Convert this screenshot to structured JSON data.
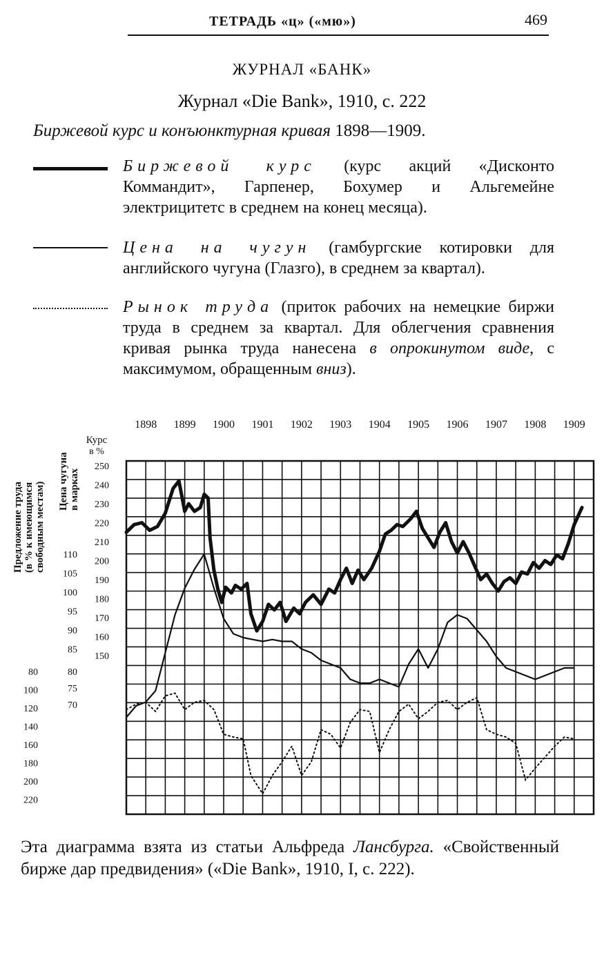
{
  "running_head": {
    "title": "ТЕТРАДЬ «ц» («мю»)",
    "page_number": "469"
  },
  "section_title": "ЖУРНАЛ «БАНК»",
  "source_line": "Журнал «Die Bank», 1910, с. 222",
  "caption": {
    "italic": "Биржевой курс и конъюнктурная кривая",
    "years": "1898—1909."
  },
  "legend": [
    {
      "style": "thick-solid",
      "term": "Биржевой курс",
      "text": "(курс акций «Дисконто Коммандит», Гарпенер, Бохумер и Альгемейне электрицитетс в среднем на конец месяца)."
    },
    {
      "style": "thin-solid",
      "term": "Цена на чугун",
      "text": "(гамбургские котировки для английского чугуна (Глазго), в среднем за квартал)."
    },
    {
      "style": "dotted",
      "term": "Рынок труда",
      "text_before": "(приток рабочих на немецкие биржи труда в среднем за квартал. Для облегчения сравнения кривая рынка труда нанесена",
      "italic_part": "в опрокинутом виде",
      "text_middle": ", с максимумом, обращенным",
      "italic_end": "вниз",
      "text_end": ")."
    }
  ],
  "chart_data": {
    "type": "line",
    "x_tick_labels": [
      "1898",
      "1899",
      "1900",
      "1901",
      "1902",
      "1903",
      "1904",
      "1905",
      "1906",
      "1907",
      "1908",
      "1909"
    ],
    "axis_titles": {
      "labor": "Предложение труда (в % к имеющимся свободным местам)",
      "iron": "Цена чугуна в марках",
      "stock": "Курс в %"
    },
    "stock_ticks": [
      "250",
      "240",
      "230",
      "220",
      "210",
      "200",
      "190",
      "180",
      "170",
      "160",
      "150"
    ],
    "iron_ticks_upper": [
      "110",
      "105",
      "100",
      "95",
      "90",
      "85"
    ],
    "iron_ticks_lower": [
      "80",
      "75",
      "70"
    ],
    "labor_ticks": [
      "80",
      "100",
      "120",
      "140",
      "160",
      "180",
      "200",
      "220"
    ],
    "x_range": [
      1898.0,
      1910.0
    ],
    "stock_range": [
      253,
      130
    ],
    "grid": true,
    "series": [
      {
        "name": "Биржевой курс",
        "unit": "%",
        "points": [
          [
            1898.0,
            215
          ],
          [
            1898.2,
            219
          ],
          [
            1898.4,
            220
          ],
          [
            1898.6,
            216
          ],
          [
            1898.8,
            218
          ],
          [
            1899.0,
            225
          ],
          [
            1899.2,
            238
          ],
          [
            1899.35,
            242
          ],
          [
            1899.5,
            226
          ],
          [
            1899.6,
            230
          ],
          [
            1899.75,
            226
          ],
          [
            1899.9,
            228
          ],
          [
            1900.0,
            235
          ],
          [
            1900.1,
            233
          ],
          [
            1900.15,
            212
          ],
          [
            1900.25,
            195
          ],
          [
            1900.35,
            185
          ],
          [
            1900.45,
            178
          ],
          [
            1900.55,
            186
          ],
          [
            1900.7,
            183
          ],
          [
            1900.8,
            187
          ],
          [
            1900.95,
            185
          ],
          [
            1901.1,
            188
          ],
          [
            1901.2,
            172
          ],
          [
            1901.35,
            163
          ],
          [
            1901.5,
            168
          ],
          [
            1901.65,
            177
          ],
          [
            1901.8,
            174
          ],
          [
            1901.95,
            178
          ],
          [
            1902.1,
            168
          ],
          [
            1902.3,
            175
          ],
          [
            1902.45,
            172
          ],
          [
            1902.6,
            178
          ],
          [
            1902.8,
            182
          ],
          [
            1903.0,
            177
          ],
          [
            1903.2,
            185
          ],
          [
            1903.35,
            183
          ],
          [
            1903.5,
            190
          ],
          [
            1903.65,
            196
          ],
          [
            1903.8,
            188
          ],
          [
            1903.95,
            195
          ],
          [
            1904.1,
            190
          ],
          [
            1904.3,
            196
          ],
          [
            1904.5,
            205
          ],
          [
            1904.65,
            214
          ],
          [
            1904.8,
            216
          ],
          [
            1904.95,
            219
          ],
          [
            1905.1,
            218
          ],
          [
            1905.3,
            222
          ],
          [
            1905.45,
            226
          ],
          [
            1905.6,
            217
          ],
          [
            1905.75,
            212
          ],
          [
            1905.9,
            207
          ],
          [
            1906.05,
            215
          ],
          [
            1906.2,
            220
          ],
          [
            1906.35,
            210
          ],
          [
            1906.5,
            204
          ],
          [
            1906.65,
            210
          ],
          [
            1906.8,
            204
          ],
          [
            1906.95,
            197
          ],
          [
            1907.1,
            190
          ],
          [
            1907.25,
            193
          ],
          [
            1907.4,
            188
          ],
          [
            1907.55,
            184
          ],
          [
            1907.7,
            189
          ],
          [
            1907.85,
            191
          ],
          [
            1908.0,
            188
          ],
          [
            1908.15,
            194
          ],
          [
            1908.3,
            193
          ],
          [
            1908.45,
            199
          ],
          [
            1908.6,
            196
          ],
          [
            1908.75,
            200
          ],
          [
            1908.9,
            198
          ],
          [
            1909.05,
            203
          ],
          [
            1909.2,
            201
          ],
          [
            1909.35,
            209
          ],
          [
            1909.5,
            219
          ],
          [
            1909.7,
            228
          ]
        ]
      },
      {
        "name": "Цена на чугун",
        "unit": "марки",
        "points": [
          [
            1898.0,
            67
          ],
          [
            1898.25,
            70
          ],
          [
            1898.5,
            71
          ],
          [
            1898.75,
            74
          ],
          [
            1899.0,
            84
          ],
          [
            1899.25,
            94
          ],
          [
            1899.5,
            101
          ],
          [
            1899.75,
            106
          ],
          [
            1900.0,
            110
          ],
          [
            1900.25,
            101
          ],
          [
            1900.5,
            93
          ],
          [
            1900.75,
            89
          ],
          [
            1901.0,
            88
          ],
          [
            1901.25,
            87.5
          ],
          [
            1901.5,
            87
          ],
          [
            1901.75,
            87.5
          ],
          [
            1902.0,
            87
          ],
          [
            1902.25,
            87
          ],
          [
            1902.5,
            85
          ],
          [
            1902.75,
            84
          ],
          [
            1903.0,
            82
          ],
          [
            1903.25,
            81
          ],
          [
            1903.5,
            80
          ],
          [
            1903.75,
            77
          ],
          [
            1904.0,
            76
          ],
          [
            1904.25,
            76
          ],
          [
            1904.5,
            77
          ],
          [
            1904.75,
            76
          ],
          [
            1905.0,
            75
          ],
          [
            1905.25,
            81
          ],
          [
            1905.5,
            85
          ],
          [
            1905.75,
            80
          ],
          [
            1906.0,
            85
          ],
          [
            1906.25,
            92
          ],
          [
            1906.5,
            94
          ],
          [
            1906.75,
            93
          ],
          [
            1907.0,
            90
          ],
          [
            1907.25,
            87
          ],
          [
            1907.5,
            83
          ],
          [
            1907.75,
            80
          ],
          [
            1908.0,
            79
          ],
          [
            1908.25,
            78
          ],
          [
            1908.5,
            77
          ],
          [
            1908.75,
            78
          ],
          [
            1909.0,
            79
          ],
          [
            1909.25,
            80
          ],
          [
            1909.5,
            80
          ]
        ]
      },
      {
        "name": "Рынок труда",
        "unit": "%",
        "points": [
          [
            1898.0,
            118
          ],
          [
            1898.25,
            112
          ],
          [
            1898.5,
            110
          ],
          [
            1898.75,
            120
          ],
          [
            1899.0,
            103
          ],
          [
            1899.25,
            100
          ],
          [
            1899.5,
            118
          ],
          [
            1899.75,
            110
          ],
          [
            1900.0,
            108
          ],
          [
            1900.25,
            118
          ],
          [
            1900.5,
            145
          ],
          [
            1900.75,
            148
          ],
          [
            1901.0,
            150
          ],
          [
            1901.2,
            190
          ],
          [
            1901.5,
            210
          ],
          [
            1901.75,
            190
          ],
          [
            1902.0,
            175
          ],
          [
            1902.25,
            158
          ],
          [
            1902.5,
            190
          ],
          [
            1902.75,
            175
          ],
          [
            1903.0,
            140
          ],
          [
            1903.25,
            145
          ],
          [
            1903.5,
            160
          ],
          [
            1903.75,
            132
          ],
          [
            1904.0,
            118
          ],
          [
            1904.25,
            120
          ],
          [
            1904.5,
            165
          ],
          [
            1904.75,
            140
          ],
          [
            1905.0,
            120
          ],
          [
            1905.25,
            112
          ],
          [
            1905.5,
            128
          ],
          [
            1905.75,
            120
          ],
          [
            1906.0,
            110
          ],
          [
            1906.25,
            108
          ],
          [
            1906.5,
            118
          ],
          [
            1906.75,
            110
          ],
          [
            1907.0,
            105
          ],
          [
            1907.25,
            140
          ],
          [
            1907.5,
            145
          ],
          [
            1907.75,
            148
          ],
          [
            1908.0,
            155
          ],
          [
            1908.25,
            195
          ],
          [
            1908.5,
            182
          ],
          [
            1908.75,
            170
          ],
          [
            1909.0,
            158
          ],
          [
            1909.25,
            148
          ],
          [
            1909.5,
            150
          ]
        ]
      }
    ]
  },
  "footnote": {
    "prefix": "Эта диаграмма взята из статьи Альфреда",
    "author": "Лансбурга.",
    "title_and_ref": "«Свойственный бирже дар предвидения» («Die Bank», 1910, I, с. 222)."
  }
}
